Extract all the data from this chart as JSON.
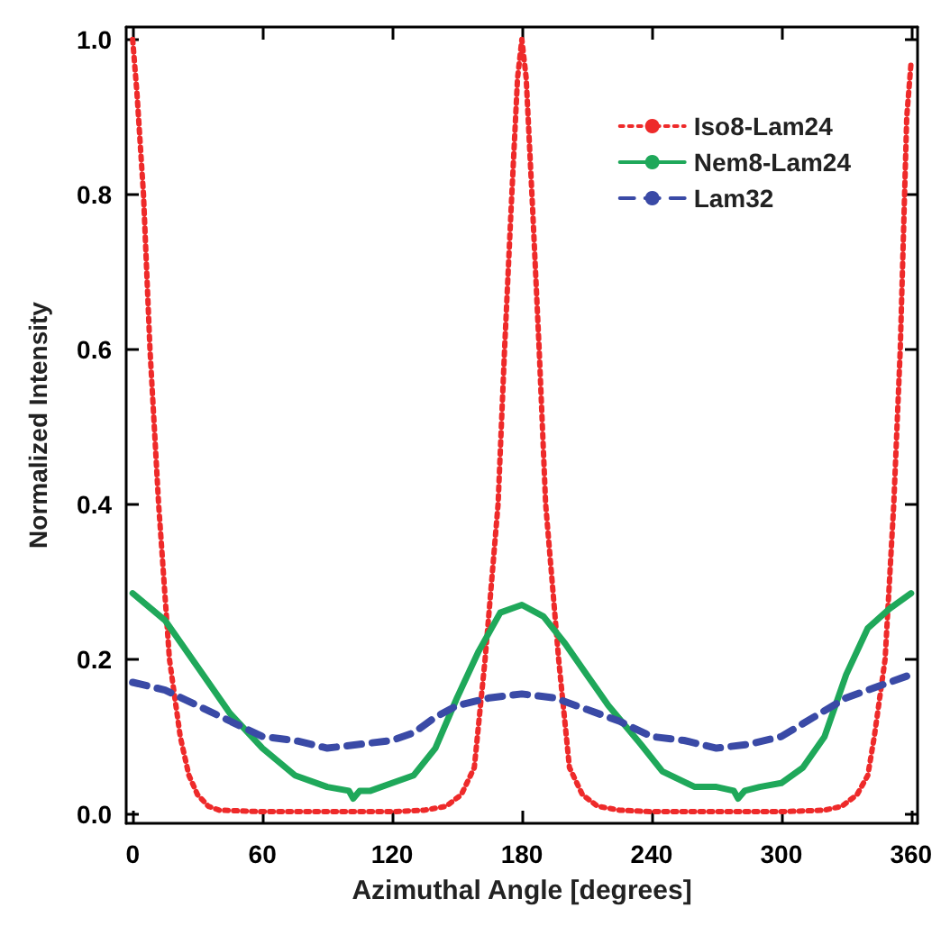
{
  "chart_data": {
    "type": "line",
    "xlabel": "Azimuthal Angle [degrees]",
    "ylabel": "Normalized Intensity",
    "xlim": [
      -3,
      363
    ],
    "ylim": [
      -0.012,
      1.016
    ],
    "xticks": [
      0,
      60,
      120,
      180,
      240,
      300,
      360
    ],
    "yticks": [
      {
        "value": 0,
        "label": "0.0"
      },
      {
        "value": 0.2,
        "label": "0.2"
      },
      {
        "value": 0.4,
        "label": "0.4"
      },
      {
        "value": 0.6,
        "label": "0.6"
      },
      {
        "value": 0.8,
        "label": "0.8"
      },
      {
        "value": 1,
        "label": "1.0"
      }
    ],
    "grid": false,
    "legend": "top right",
    "marker": "none",
    "series": [
      {
        "name": "Iso8-Lam24",
        "color": "#ee2a2a",
        "line_style": "dotted",
        "x": [
          0,
          2,
          5,
          8,
          12,
          17,
          22,
          26,
          30,
          35,
          40,
          60,
          90,
          120,
          135,
          145,
          152,
          158,
          163,
          166,
          169,
          172,
          175,
          178,
          180,
          182,
          185,
          188,
          191,
          194,
          197,
          202,
          208,
          215,
          225,
          240,
          270,
          300,
          320,
          328,
          335,
          340,
          343,
          348,
          352,
          355,
          358,
          360
        ],
        "values": [
          1.0,
          0.93,
          0.8,
          0.6,
          0.4,
          0.2,
          0.1,
          0.05,
          0.025,
          0.01,
          0.005,
          0.003,
          0.003,
          0.003,
          0.005,
          0.01,
          0.025,
          0.06,
          0.2,
          0.3,
          0.4,
          0.6,
          0.78,
          0.95,
          1.0,
          0.95,
          0.78,
          0.6,
          0.4,
          0.3,
          0.2,
          0.06,
          0.025,
          0.01,
          0.005,
          0.003,
          0.003,
          0.003,
          0.005,
          0.01,
          0.025,
          0.05,
          0.1,
          0.2,
          0.4,
          0.6,
          0.9,
          0.97
        ]
      },
      {
        "name": "Nem8-Lam24",
        "color": "#1fa85a",
        "line_style": "solid",
        "x": [
          0,
          15,
          30,
          45,
          60,
          75,
          90,
          100,
          102,
          105,
          110,
          120,
          130,
          140,
          150,
          160,
          170,
          180,
          190,
          200,
          210,
          220,
          235,
          245,
          260,
          270,
          278,
          280,
          283,
          290,
          300,
          310,
          320,
          330,
          340,
          350,
          360
        ],
        "values": [
          0.285,
          0.25,
          0.19,
          0.13,
          0.085,
          0.05,
          0.035,
          0.03,
          0.02,
          0.03,
          0.03,
          0.04,
          0.05,
          0.085,
          0.15,
          0.21,
          0.26,
          0.27,
          0.255,
          0.22,
          0.18,
          0.14,
          0.09,
          0.055,
          0.035,
          0.035,
          0.03,
          0.02,
          0.03,
          0.035,
          0.04,
          0.06,
          0.1,
          0.18,
          0.24,
          0.265,
          0.285
        ]
      },
      {
        "name": "Lam32",
        "color": "#3a4aa6",
        "line_style": "dashed",
        "x": [
          0,
          15,
          30,
          45,
          60,
          75,
          90,
          105,
          120,
          130,
          140,
          150,
          165,
          180,
          195,
          210,
          225,
          240,
          255,
          270,
          285,
          300,
          315,
          330,
          345,
          360
        ],
        "values": [
          0.17,
          0.16,
          0.14,
          0.12,
          0.1,
          0.095,
          0.085,
          0.09,
          0.095,
          0.105,
          0.125,
          0.14,
          0.15,
          0.155,
          0.15,
          0.135,
          0.12,
          0.1,
          0.095,
          0.085,
          0.09,
          0.1,
          0.125,
          0.15,
          0.165,
          0.18
        ]
      }
    ]
  }
}
